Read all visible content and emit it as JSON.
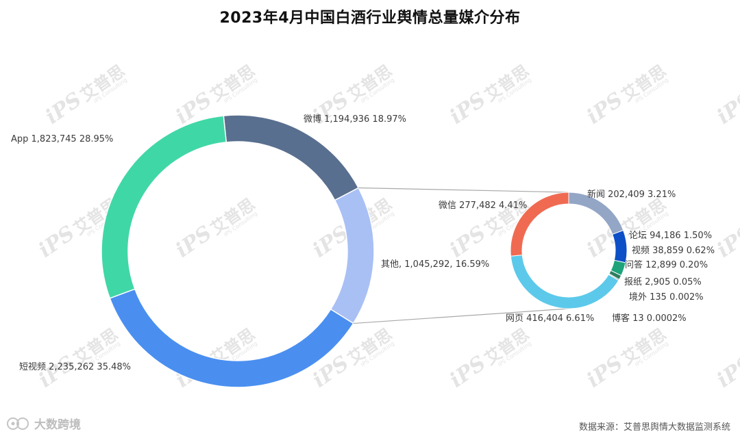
{
  "page": {
    "title": "2023年4月中国白酒行业舆情总量媒介分布",
    "source": "数据来源：艾普思舆情大数据监测系统",
    "footer_brand": "大数跨境",
    "watermark": {
      "logo": "iPS",
      "cn": "艾普思",
      "en": "IPS Consulting"
    }
  },
  "colors": {
    "weibo": "#596f8f",
    "other": "#a9c0f5",
    "short_video": "#4a8ff0",
    "app": "#40d7a6",
    "news": "#94a6c6",
    "forum": "#0d4fc6",
    "video": "#1ea37b",
    "qa": "#2f7d5f",
    "newspaper": "#3c3c3c",
    "overseas": "#8a8a8a",
    "blog": "#5f5f5f",
    "web": "#5cc9ea",
    "wechat": "#f06a52",
    "connector": "#a8a8a8"
  },
  "chart_data": [
    {
      "type": "pie",
      "style": "donut",
      "title": "",
      "slices": [
        {
          "label": "微博",
          "value": 1194936,
          "percent": "18.97%",
          "text": "微博 1,194,936 18.97%"
        },
        {
          "label": "其他",
          "value": 1045292,
          "percent": "16.59%",
          "text": "其他, 1,045,292, 16.59%"
        },
        {
          "label": "短视频",
          "value": 2235262,
          "percent": "35.48%",
          "text": "短视频 2,235,262 35.48%"
        },
        {
          "label": "App",
          "value": 1823745,
          "percent": "28.95%",
          "text": "App 1,823,745 28.95%"
        }
      ]
    },
    {
      "type": "pie",
      "style": "donut",
      "title": "",
      "breakdown_of": "其他",
      "slices": [
        {
          "label": "新闻",
          "value": 202409,
          "percent": "3.21%",
          "text": "新闻 202,409 3.21%"
        },
        {
          "label": "论坛",
          "value": 94186,
          "percent": "1.50%",
          "text": "论坛 94,186 1.50%"
        },
        {
          "label": "视频",
          "value": 38859,
          "percent": "0.62%",
          "text": "视频 38,859 0.62%"
        },
        {
          "label": "问答",
          "value": 12899,
          "percent": "0.20%",
          "text": "问答 12,899 0.20%"
        },
        {
          "label": "报纸",
          "value": 2905,
          "percent": "0.05%",
          "text": "报纸 2,905 0.05%"
        },
        {
          "label": "境外",
          "value": 135,
          "percent": "0.002%",
          "text": "境外 135 0.002%"
        },
        {
          "label": "博客",
          "value": 13,
          "percent": "0.0002%",
          "text": "博客 13 0.0002%"
        },
        {
          "label": "网页",
          "value": 416404,
          "percent": "6.61%",
          "text": "网页 416,404 6.61%"
        },
        {
          "label": "微信",
          "value": 277482,
          "percent": "4.41%",
          "text": "微信 277,482 4.41%"
        }
      ]
    }
  ]
}
